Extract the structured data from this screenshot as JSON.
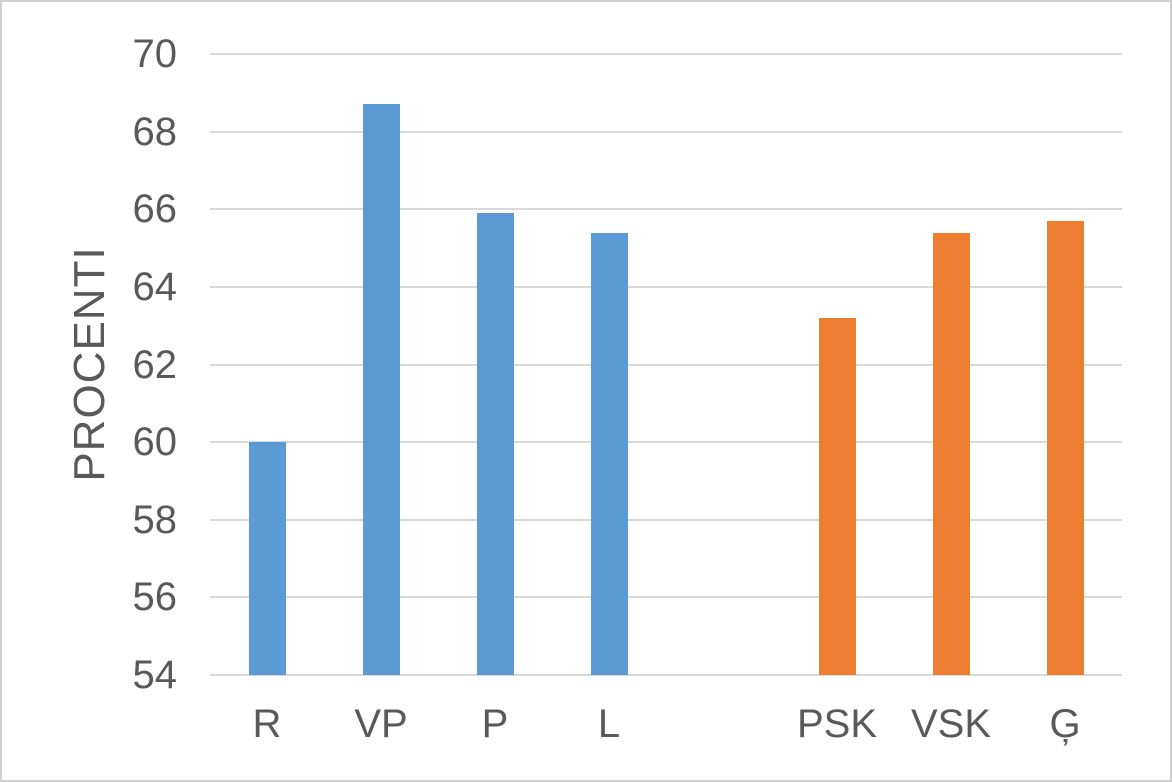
{
  "chart_data": {
    "type": "bar",
    "title": "",
    "xlabel": "",
    "ylabel": "PROCENTI",
    "categories": [
      "R",
      "VP",
      "P",
      "L",
      "",
      "PSK",
      "VSK",
      "Ģ"
    ],
    "values": [
      60.0,
      68.7,
      65.9,
      65.4,
      null,
      63.2,
      65.4,
      65.7
    ],
    "bar_colors": [
      "#5B9BD5",
      "#5B9BD5",
      "#5B9BD5",
      "#5B9BD5",
      null,
      "#ED7D31",
      "#ED7D31",
      "#ED7D31"
    ],
    "ylim": [
      54,
      70
    ],
    "yticks": [
      54,
      56,
      58,
      60,
      62,
      64,
      66,
      68,
      70
    ],
    "grid": true,
    "legend_position": "none",
    "colors": {
      "blue_series": "#5B9BD5",
      "orange_series": "#ED7D31",
      "gridline": "#D9D9D9",
      "text": "#595959",
      "background": "#FFFFFF"
    }
  }
}
